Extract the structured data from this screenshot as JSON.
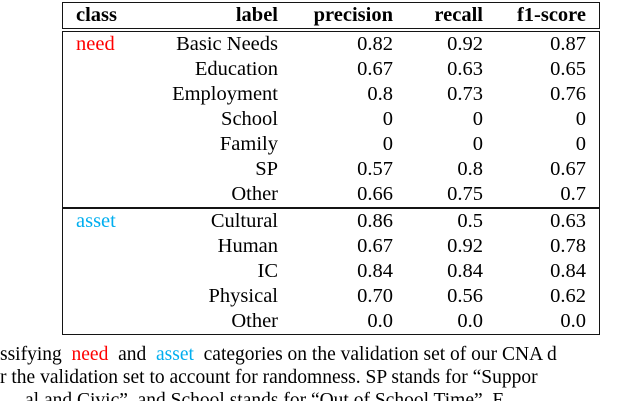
{
  "colors": {
    "need": "#ff0000",
    "asset": "#00aeef",
    "border": "#141414"
  },
  "table": {
    "headers": {
      "class": "class",
      "label": "label",
      "precision": "precision",
      "recall": "recall",
      "f1": "f1-score"
    },
    "sections": [
      {
        "class_label": "need",
        "class_color": "#ff0000",
        "rows": [
          {
            "label": "Basic Needs",
            "precision": "0.82",
            "recall": "0.92",
            "f1": "0.87"
          },
          {
            "label": "Education",
            "precision": "0.67",
            "recall": "0.63",
            "f1": "0.65"
          },
          {
            "label": "Employment",
            "precision": "0.8",
            "recall": "0.73",
            "f1": "0.76"
          },
          {
            "label": "School",
            "precision": "0",
            "recall": "0",
            "f1": "0"
          },
          {
            "label": "Family",
            "precision": "0",
            "recall": "0",
            "f1": "0"
          },
          {
            "label": "SP",
            "precision": "0.57",
            "recall": "0.8",
            "f1": "0.67"
          },
          {
            "label": "Other",
            "precision": "0.66",
            "recall": "0.75",
            "f1": "0.7"
          }
        ]
      },
      {
        "class_label": "asset",
        "class_color": "#00aeef",
        "rows": [
          {
            "label": "Cultural",
            "precision": "0.86",
            "recall": "0.5",
            "f1": "0.63"
          },
          {
            "label": "Human",
            "precision": "0.67",
            "recall": "0.92",
            "f1": "0.78"
          },
          {
            "label": "IC",
            "precision": "0.84",
            "recall": "0.84",
            "f1": "0.84"
          },
          {
            "label": "Physical",
            "precision": "0.70",
            "recall": "0.56",
            "f1": "0.62"
          },
          {
            "label": "Other",
            "precision": "0.0",
            "recall": "0.0",
            "f1": "0.0"
          }
        ]
      }
    ]
  },
  "caption": {
    "line1_pre": "ssifying ",
    "line1_need": "need",
    "line1_mid": " and ",
    "line1_asset": "asset",
    "line1_post": " categories on the validation set of our CNA d",
    "line2": "r the validation set to account for randomness. SP stands for “Suppor",
    "line3": "al and Civic”, and School stands for “Out of School Time”. F"
  }
}
